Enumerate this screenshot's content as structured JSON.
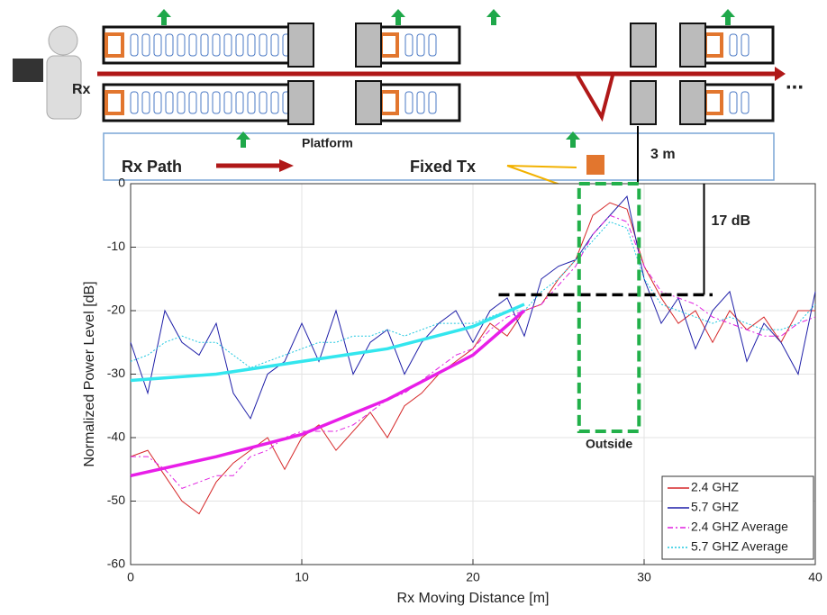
{
  "chart_data": {
    "type": "line",
    "xlabel": "Rx Moving Distance [m]",
    "ylabel": "Normalized Power Level [dB]",
    "x": [
      0,
      1,
      2,
      3,
      4,
      5,
      6,
      7,
      8,
      9,
      10,
      11,
      12,
      13,
      14,
      15,
      16,
      17,
      18,
      19,
      20,
      21,
      22,
      23,
      24,
      25,
      26,
      27,
      28,
      29,
      30,
      31,
      32,
      33,
      34,
      35,
      36,
      37,
      38,
      39,
      40
    ],
    "series": [
      {
        "name": "2.4 GHZ",
        "color": "#d62728",
        "line_style": "solid",
        "values": [
          -43,
          -42,
          -46,
          -50,
          -52,
          -47,
          -44,
          -42,
          -40,
          -45,
          -40,
          -38,
          -42,
          -39,
          -36,
          -40,
          -35,
          -33,
          -30,
          -28,
          -26,
          -22,
          -24,
          -20,
          -19,
          -15,
          -12,
          -5,
          -3,
          -4,
          -13,
          -18,
          -22,
          -20,
          -25,
          -20,
          -23,
          -21,
          -25,
          -20,
          -20
        ]
      },
      {
        "name": "5.7 GHZ",
        "color": "#1f1fa8",
        "line_style": "solid",
        "values": [
          -25,
          -33,
          -20,
          -25,
          -27,
          -22,
          -33,
          -37,
          -30,
          -28,
          -22,
          -28,
          -20,
          -30,
          -25,
          -23,
          -30,
          -25,
          -22,
          -20,
          -25,
          -20,
          -18,
          -24,
          -15,
          -13,
          -12,
          -8,
          -5,
          -2,
          -15,
          -22,
          -18,
          -26,
          -20,
          -17,
          -28,
          -22,
          -25,
          -30,
          -17
        ]
      },
      {
        "name": "2.4 GHZ Average",
        "color": "#e020e0",
        "line_style": "dashdot",
        "values": [
          -43,
          -43,
          -45,
          -48,
          -47,
          -46,
          -46,
          -43,
          -42,
          -40,
          -39,
          -39,
          -39,
          -38,
          -36,
          -34,
          -33,
          -31,
          -29,
          -27,
          -26,
          -23,
          -21,
          -20,
          -19,
          -16,
          -13,
          -8,
          -5,
          -6,
          -13,
          -17,
          -18,
          -19,
          -21,
          -22,
          -23,
          -24,
          -24,
          -22,
          -21
        ]
      },
      {
        "name": "5.7 GHZ Average",
        "color": "#20c8e0",
        "line_style": "dotted",
        "values": [
          -28,
          -27,
          -25,
          -24,
          -25,
          -25,
          -27,
          -29,
          -28,
          -27,
          -26,
          -25,
          -25,
          -24,
          -24,
          -23,
          -24,
          -23,
          -22,
          -22,
          -22,
          -21,
          -20,
          -20,
          -17,
          -15,
          -12,
          -9,
          -6,
          -7,
          -15,
          -19,
          -20,
          -21,
          -22,
          -21,
          -22,
          -23,
          -23,
          -22,
          -19
        ]
      }
    ],
    "trend_lines": [
      {
        "color": "#33e6ee",
        "x": [
          0,
          5,
          10,
          15,
          20,
          23
        ],
        "values": [
          -31,
          -30,
          -28,
          -26,
          -22.5,
          -19
        ]
      },
      {
        "color": "#e81ee8",
        "x": [
          0,
          5,
          10,
          15,
          20,
          23
        ],
        "values": [
          -46,
          -43,
          -39.5,
          -34,
          -27,
          -20
        ]
      }
    ],
    "threshold_line": {
      "color": "#000000",
      "x": [
        21.5,
        34
      ],
      "values": [
        -17.5,
        -17.5
      ]
    },
    "highlight_box": {
      "color": "#22b04a",
      "xlim": [
        26.2,
        29.7
      ],
      "ylim": [
        -39,
        0
      ],
      "label": "Outside"
    },
    "gap_annotation": {
      "x": 33.5,
      "values": [
        0,
        -17.5
      ],
      "label": "17 dB"
    },
    "xlim": [
      0,
      40
    ],
    "xticks": [
      0,
      10,
      20,
      30,
      40
    ],
    "ylim": [
      -60,
      0
    ],
    "yticks": [
      -60,
      -50,
      -40,
      -30,
      -20,
      -10,
      0
    ],
    "grid": true,
    "legend": "lower right"
  },
  "diagram": {
    "rx": "Rx",
    "platform": "Platform",
    "rx_path": "Rx Path",
    "fixed_tx": "Fixed Tx",
    "distance": "3 m",
    "ellipsis": "..."
  }
}
